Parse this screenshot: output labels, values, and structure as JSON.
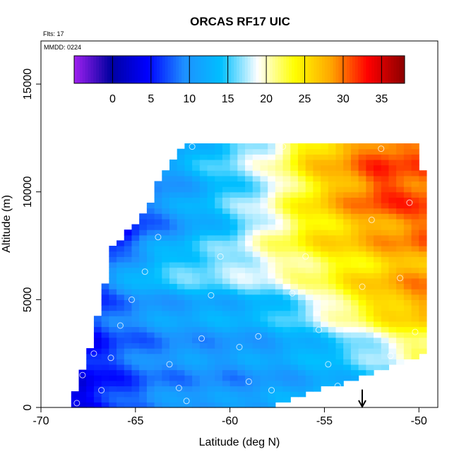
{
  "chart_data": {
    "type": "heatmap",
    "title": "ORCAS RF17 UIC",
    "annotations": [
      "Flts: 17",
      "MMDD: 0224"
    ],
    "xlabel": "Latitude (deg N)",
    "ylabel": "Altitude (m)",
    "xlim": [
      -70,
      -49
    ],
    "ylim": [
      0,
      17000
    ],
    "x_ticks": [
      -70,
      -65,
      -60,
      -55,
      -50
    ],
    "y_ticks": [
      0,
      5000,
      10000,
      15000
    ],
    "colorbar": {
      "placement": "top",
      "range": [
        -5,
        38
      ],
      "ticks": [
        0,
        5,
        10,
        15,
        20,
        25,
        30,
        35
      ],
      "colors": [
        "#a020f0",
        "#0000a0",
        "#0000ff",
        "#1e90ff",
        "#00bfff",
        "#ffffff",
        "#ffff00",
        "#ffa500",
        "#ff0000",
        "#8b0000"
      ]
    },
    "coverage": [
      {
        "alt": 0,
        "lat_min": -68.5,
        "lat_max": -58
      },
      {
        "alt": 2500,
        "lat_min": -67.5,
        "lat_max": -49.5
      },
      {
        "alt": 5000,
        "lat_min": -66.8,
        "lat_max": -49.5
      },
      {
        "alt": 7500,
        "lat_min": -66.2,
        "lat_max": -49.5
      },
      {
        "alt": 9000,
        "lat_min": -64.5,
        "lat_max": -49.7
      },
      {
        "alt": 11000,
        "lat_min": -63.5,
        "lat_max": -49.8
      },
      {
        "alt": 12200,
        "lat_min": -62.5,
        "lat_max": -50
      }
    ],
    "field": [
      {
        "alt": 0,
        "lats": [
          -68,
          -66,
          -64,
          -62,
          -60,
          -58,
          -56,
          -54,
          -52,
          -50
        ],
        "values": [
          3,
          6,
          9,
          10,
          10,
          11,
          12,
          13,
          13,
          13
        ]
      },
      {
        "alt": 2500,
        "lats": [
          -68,
          -66,
          -64,
          -62,
          -60,
          -58,
          -56,
          -54,
          -52,
          -50
        ],
        "values": [
          4,
          7,
          9,
          10,
          10,
          11,
          12,
          14,
          17,
          21
        ]
      },
      {
        "alt": 5000,
        "lats": [
          -68,
          -66,
          -64,
          -62,
          -60,
          -58,
          -56,
          -54,
          -52,
          -50
        ],
        "values": [
          4,
          9,
          11,
          12,
          13,
          14,
          18,
          23,
          27,
          29
        ]
      },
      {
        "alt": 6500,
        "lats": [
          -68,
          -66,
          -64,
          -62,
          -60,
          -58,
          -56,
          -54,
          -52,
          -50
        ],
        "values": [
          2,
          11,
          15,
          17,
          18,
          20,
          22,
          24,
          26,
          28
        ]
      },
      {
        "alt": 8000,
        "lats": [
          -68,
          -66,
          -64,
          -62,
          -60,
          -58,
          -56,
          -54,
          -52,
          -50
        ],
        "values": [
          0,
          3,
          9,
          12,
          15,
          20,
          24,
          26,
          28,
          30
        ]
      },
      {
        "alt": 10000,
        "lats": [
          -68,
          -66,
          -64,
          -62,
          -60,
          -58,
          -56,
          -54,
          -52,
          -50
        ],
        "values": [
          8,
          8,
          9,
          12,
          15,
          18,
          24,
          28,
          32,
          31
        ]
      },
      {
        "alt": 12000,
        "lats": [
          -68,
          -66,
          -64,
          -62,
          -60,
          -58,
          -56,
          -54,
          -52,
          -50
        ],
        "values": [
          10,
          10,
          11,
          13,
          16,
          19,
          25,
          28,
          31,
          30
        ]
      }
    ],
    "flight_track": [
      {
        "lat": -68.1,
        "alt": 200
      },
      {
        "lat": -67.8,
        "alt": 1500
      },
      {
        "lat": -67.2,
        "alt": 2500
      },
      {
        "lat": -66.8,
        "alt": 800
      },
      {
        "lat": -66.3,
        "alt": 2300
      },
      {
        "lat": -65.8,
        "alt": 3800
      },
      {
        "lat": -65.2,
        "alt": 5000
      },
      {
        "lat": -64.5,
        "alt": 6300
      },
      {
        "lat": -63.8,
        "alt": 7900
      },
      {
        "lat": -63.2,
        "alt": 2000
      },
      {
        "lat": -62.7,
        "alt": 900
      },
      {
        "lat": -62.3,
        "alt": 300
      },
      {
        "lat": -62.0,
        "alt": 12100
      },
      {
        "lat": -61.5,
        "alt": 3200
      },
      {
        "lat": -61.0,
        "alt": 5200
      },
      {
        "lat": -60.5,
        "alt": 7000
      },
      {
        "lat": -59.5,
        "alt": 2800
      },
      {
        "lat": -59.0,
        "alt": 1200
      },
      {
        "lat": -58.5,
        "alt": 3300
      },
      {
        "lat": -57.8,
        "alt": 800
      },
      {
        "lat": -57.2,
        "alt": 12100
      },
      {
        "lat": -56.7,
        "alt": 5300
      },
      {
        "lat": -56.0,
        "alt": 7000
      },
      {
        "lat": -55.3,
        "alt": 3600
      },
      {
        "lat": -54.8,
        "alt": 2000
      },
      {
        "lat": -54.3,
        "alt": 1000
      },
      {
        "lat": -53.6,
        "alt": 300
      },
      {
        "lat": -53.0,
        "alt": 5600
      },
      {
        "lat": -52.5,
        "alt": 8700
      },
      {
        "lat": -52.0,
        "alt": 12000
      },
      {
        "lat": -51.5,
        "alt": 2400
      },
      {
        "lat": -51.0,
        "alt": 6000
      },
      {
        "lat": -50.5,
        "alt": 9500
      },
      {
        "lat": -50.2,
        "alt": 3500
      },
      {
        "lat": -50.0,
        "alt": 800
      }
    ],
    "marker": {
      "lat": -53,
      "alt": 700,
      "shape": "down-arrow"
    }
  }
}
